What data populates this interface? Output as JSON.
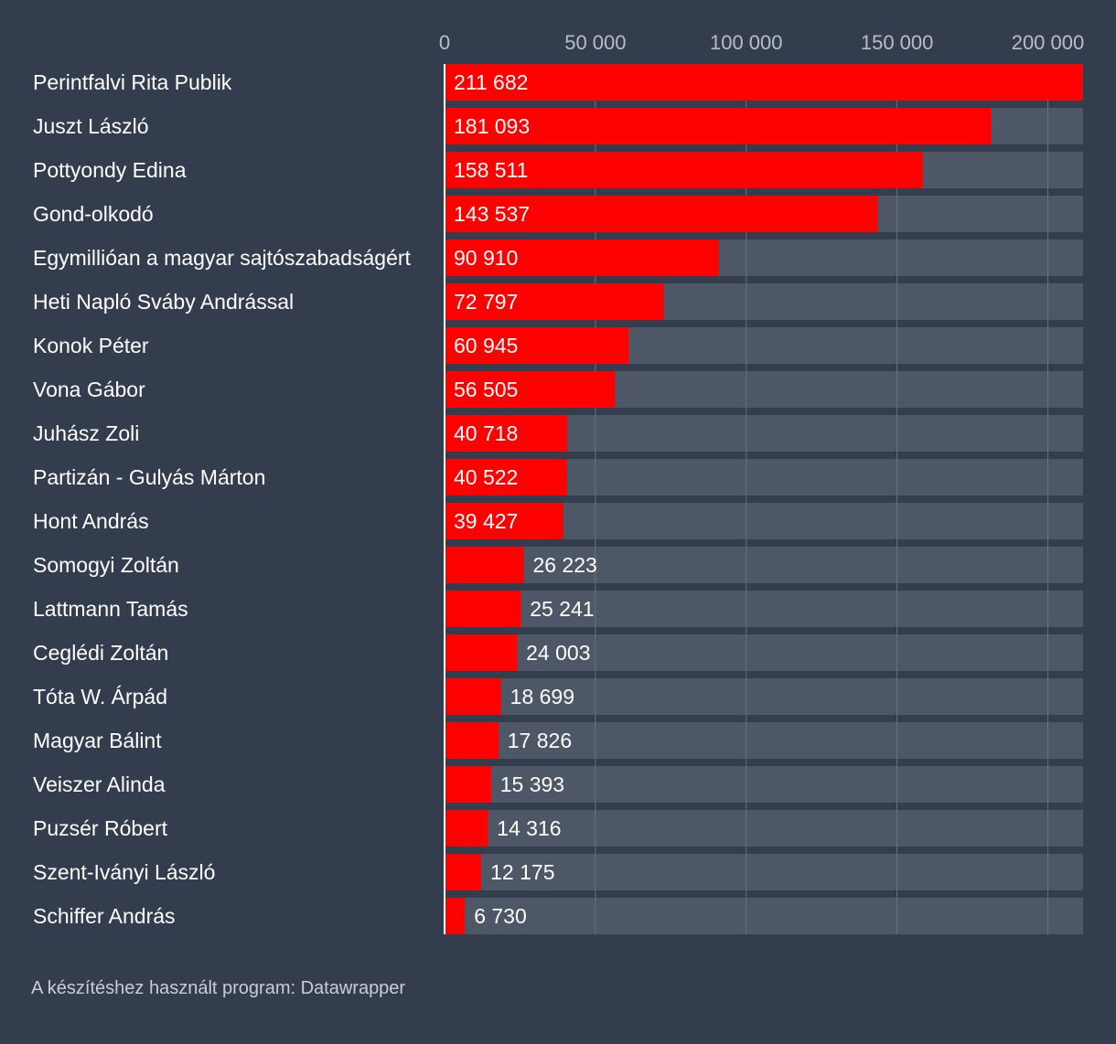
{
  "colors": {
    "background": "#333d4d",
    "bar": "#ff0000",
    "track": "#4e5766",
    "gridline": "#69717f",
    "baseline": "#ffffff"
  },
  "chart_data": {
    "type": "bar",
    "orientation": "horizontal",
    "title": "",
    "xlabel": "",
    "ylabel": "",
    "xlim": [
      0,
      211682
    ],
    "ticks": [
      0,
      50000,
      100000,
      150000,
      200000
    ],
    "tick_labels": [
      "0",
      "50 000",
      "100 000",
      "150 000",
      "200 000"
    ],
    "grid": true,
    "categories": [
      "Perintfalvi Rita Publik",
      "Juszt László",
      "Pottyondy Edina",
      "Gond-olkodó",
      "Egymillióan a magyar sajtószabadságért",
      "Heti Napló Sváby Andrással",
      "Konok Péter",
      "Vona Gábor",
      "Juhász Zoli",
      "Partizán - Gulyás Márton",
      "Hont András",
      "Somogyi Zoltán",
      "Lattmann Tamás",
      "Ceglédi Zoltán",
      "Tóta W. Árpád",
      "Magyar Bálint",
      "Veiszer Alinda",
      "Puzsér Róbert",
      "Szent-Iványi László",
      "Schiffer András"
    ],
    "values": [
      211682,
      181093,
      158511,
      143537,
      90910,
      72797,
      60945,
      56505,
      40718,
      40522,
      39427,
      26223,
      25241,
      24003,
      18699,
      17826,
      15393,
      14316,
      12175,
      6730
    ],
    "value_labels": [
      "211 682",
      "181 093",
      "158 511",
      "143 537",
      "90 910",
      "72 797",
      "60 945",
      "56 505",
      "40 718",
      "40 522",
      "39 427",
      "26 223",
      "25 241",
      "24 003",
      "18 699",
      "17 826",
      "15 393",
      "14 316",
      "12 175",
      "6 730"
    ]
  },
  "footer": {
    "credit": "A készítéshez használt program: Datawrapper"
  }
}
